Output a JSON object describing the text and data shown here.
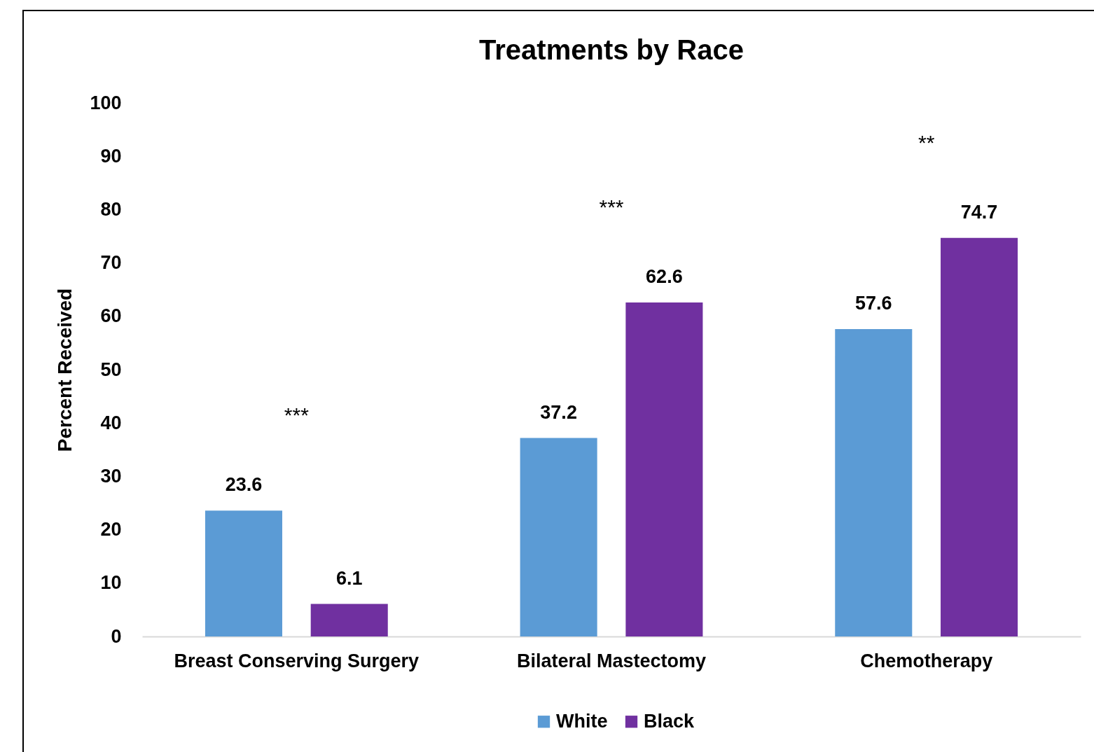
{
  "chart_data": {
    "type": "bar",
    "title": "Treatments by Race",
    "ylabel": "Percent Received",
    "categories": [
      "Breast Conserving Surgery",
      "Bilateral Mastectomy",
      "Chemotherapy"
    ],
    "series": [
      {
        "name": "White",
        "color": "#5b9bd5",
        "values": [
          23.6,
          37.2,
          57.6
        ]
      },
      {
        "name": "Black",
        "color": "#7030a0",
        "values": [
          6.1,
          62.6,
          74.7
        ]
      }
    ],
    "ylim": [
      0,
      100
    ],
    "yticks": [
      0,
      10,
      20,
      30,
      40,
      50,
      60,
      70,
      80,
      90,
      100
    ],
    "grid": false,
    "legend": "bottom",
    "data_labels": true,
    "annotations": [
      "***",
      "***",
      "**"
    ]
  }
}
